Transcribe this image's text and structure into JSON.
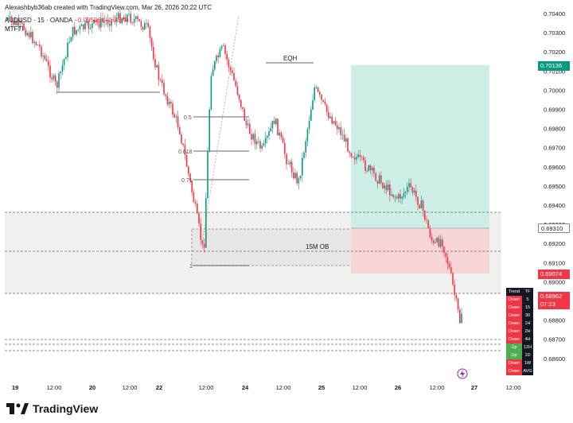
{
  "header": {
    "attribution": "Alexashbyb36ab created with TradingView.com, Mar 26, 2026 20:22 UTC",
    "symbol_line": "AUDUSD · 15 · OANDA",
    "change": "−0.00506 (−0.73%)",
    "indicator": "MTFTI"
  },
  "y_axis": {
    "ticks": [
      "0.70400",
      "0.70300",
      "0.70200",
      "0.70100",
      "0.70000",
      "0.69900",
      "0.69800",
      "0.69700",
      "0.69600",
      "0.69500",
      "0.69400",
      "0.69300",
      "0.69200",
      "0.69100",
      "0.69000",
      "0.68900",
      "0.68800",
      "0.68700",
      "0.68600"
    ]
  },
  "price_labels": {
    "target": "0.70136",
    "entry": "0.69310",
    "stop": "0.69074",
    "current": "0.68962",
    "countdown": "07:23"
  },
  "x_axis": {
    "ticks": [
      "19",
      "12:00",
      "20",
      "12:00",
      "22",
      "12:00",
      "24",
      "12:00",
      "25",
      "12:00",
      "26",
      "12:00",
      "27",
      "12:00"
    ]
  },
  "annotations": {
    "eqh": "EQH",
    "ob": "15M OB",
    "fib_05": "0.5",
    "fib_0618": "0.618",
    "fib_071": "0.71",
    "fib_1": "1"
  },
  "trend_table": {
    "header": [
      "Trend",
      "TF"
    ],
    "rows": [
      {
        "trend": "Down",
        "tf": "5",
        "color": "#f23645"
      },
      {
        "trend": "Down",
        "tf": "15",
        "color": "#f23645"
      },
      {
        "trend": "Down",
        "tf": "30",
        "color": "#f23645"
      },
      {
        "trend": "Down",
        "tf": "1H",
        "color": "#f23645"
      },
      {
        "trend": "Down",
        "tf": "2H",
        "color": "#f23645"
      },
      {
        "trend": "Down",
        "tf": "4H",
        "color": "#f23645"
      },
      {
        "trend": "Up",
        "tf": "12H",
        "color": "#4caf50"
      },
      {
        "trend": "Up",
        "tf": "1D",
        "color": "#4caf50"
      },
      {
        "trend": "Down",
        "tf": "1W",
        "color": "#f23645"
      },
      {
        "trend": "Down",
        "tf": "AVG",
        "color": "#f23645"
      }
    ]
  },
  "brand": "TradingView",
  "colors": {
    "up": "#089981",
    "down": "#f23645",
    "target_zone": "#cdeee6",
    "stop_zone": "#f7d4d6",
    "ob_zone": "#f0f0f0",
    "label_blue": "#131722"
  }
}
